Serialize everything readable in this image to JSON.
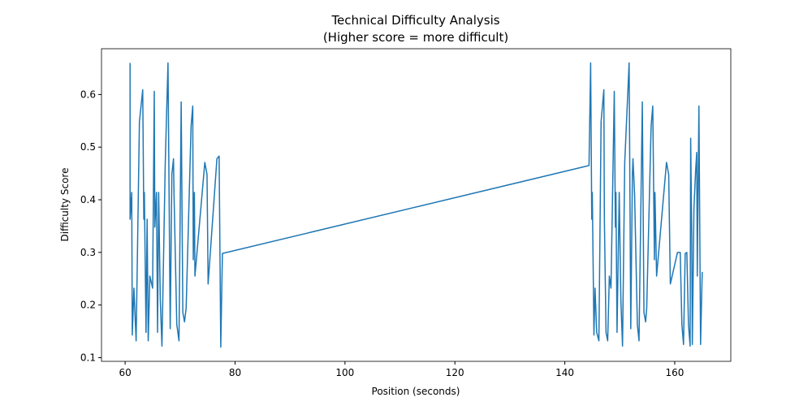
{
  "chart_data": {
    "type": "line",
    "title": "Technical Difficulty Analysis",
    "subtitle": "(Higher score = more difficult)",
    "x_label": "Position (seconds)",
    "y_label": "Difficulty Score",
    "xlim": [
      55.7,
      170.2
    ],
    "ylim": [
      0.093,
      0.687
    ],
    "xticks": [
      60,
      80,
      100,
      120,
      140,
      160
    ],
    "yticks": [
      0.1,
      0.2,
      0.3,
      0.4,
      0.5,
      0.6
    ],
    "color": "#1f77b4",
    "x": [
      60.9,
      60.9,
      61.2,
      61.3,
      61.6,
      62.0,
      62.6,
      63.2,
      63.4,
      63.5,
      63.8,
      64.0,
      64.2,
      64.5,
      65.0,
      65.3,
      65.4,
      65.7,
      65.9,
      66.1,
      66.4,
      66.7,
      67.3,
      67.8,
      68.2,
      68.5,
      68.8,
      68.9,
      69.4,
      69.8,
      70.2,
      70.5,
      70.8,
      71.1,
      72.0,
      72.3,
      72.4,
      72.6,
      72.7,
      74.5,
      74.9,
      75.1,
      76.7,
      77.1,
      77.4,
      77.7,
      144.4,
      144.7,
      144.9,
      145.0,
      145.3,
      145.5,
      145.8,
      146.2,
      146.6,
      147.1,
      147.2,
      147.5,
      147.8,
      148.1,
      148.4,
      149.0,
      149.2,
      149.3,
      149.5,
      149.9,
      150.2,
      150.5,
      150.9,
      151.7,
      152.0,
      152.3,
      152.4,
      152.7,
      153.2,
      153.5,
      154.1,
      154.4,
      154.7,
      154.9,
      155.7,
      156.0,
      156.3,
      156.4,
      156.7,
      158.5,
      158.9,
      159.2,
      160.5,
      161.0,
      161.3,
      161.6,
      161.9,
      162.2,
      162.5,
      162.8,
      162.9,
      163.1,
      163.2,
      163.5,
      163.8,
      164.0,
      164.1,
      164.4,
      164.7,
      165.0
    ],
    "values": [
      0.66,
      0.363,
      0.414,
      0.143,
      0.232,
      0.132,
      0.548,
      0.609,
      0.363,
      0.414,
      0.148,
      0.363,
      0.132,
      0.255,
      0.232,
      0.606,
      0.348,
      0.414,
      0.148,
      0.414,
      0.209,
      0.122,
      0.471,
      0.66,
      0.155,
      0.448,
      0.478,
      0.409,
      0.163,
      0.132,
      0.586,
      0.186,
      0.168,
      0.194,
      0.54,
      0.578,
      0.286,
      0.414,
      0.255,
      0.471,
      0.448,
      0.24,
      0.478,
      0.483,
      0.12,
      0.298,
      0.465,
      0.66,
      0.363,
      0.414,
      0.143,
      0.232,
      0.148,
      0.132,
      0.548,
      0.609,
      0.363,
      0.148,
      0.132,
      0.255,
      0.232,
      0.606,
      0.348,
      0.414,
      0.148,
      0.414,
      0.209,
      0.122,
      0.471,
      0.66,
      0.155,
      0.448,
      0.478,
      0.409,
      0.163,
      0.132,
      0.586,
      0.186,
      0.168,
      0.194,
      0.54,
      0.578,
      0.286,
      0.414,
      0.255,
      0.471,
      0.448,
      0.24,
      0.3,
      0.3,
      0.163,
      0.125,
      0.298,
      0.3,
      0.163,
      0.122,
      0.517,
      0.322,
      0.125,
      0.386,
      0.455,
      0.49,
      0.255,
      0.578,
      0.125,
      0.263
    ]
  }
}
